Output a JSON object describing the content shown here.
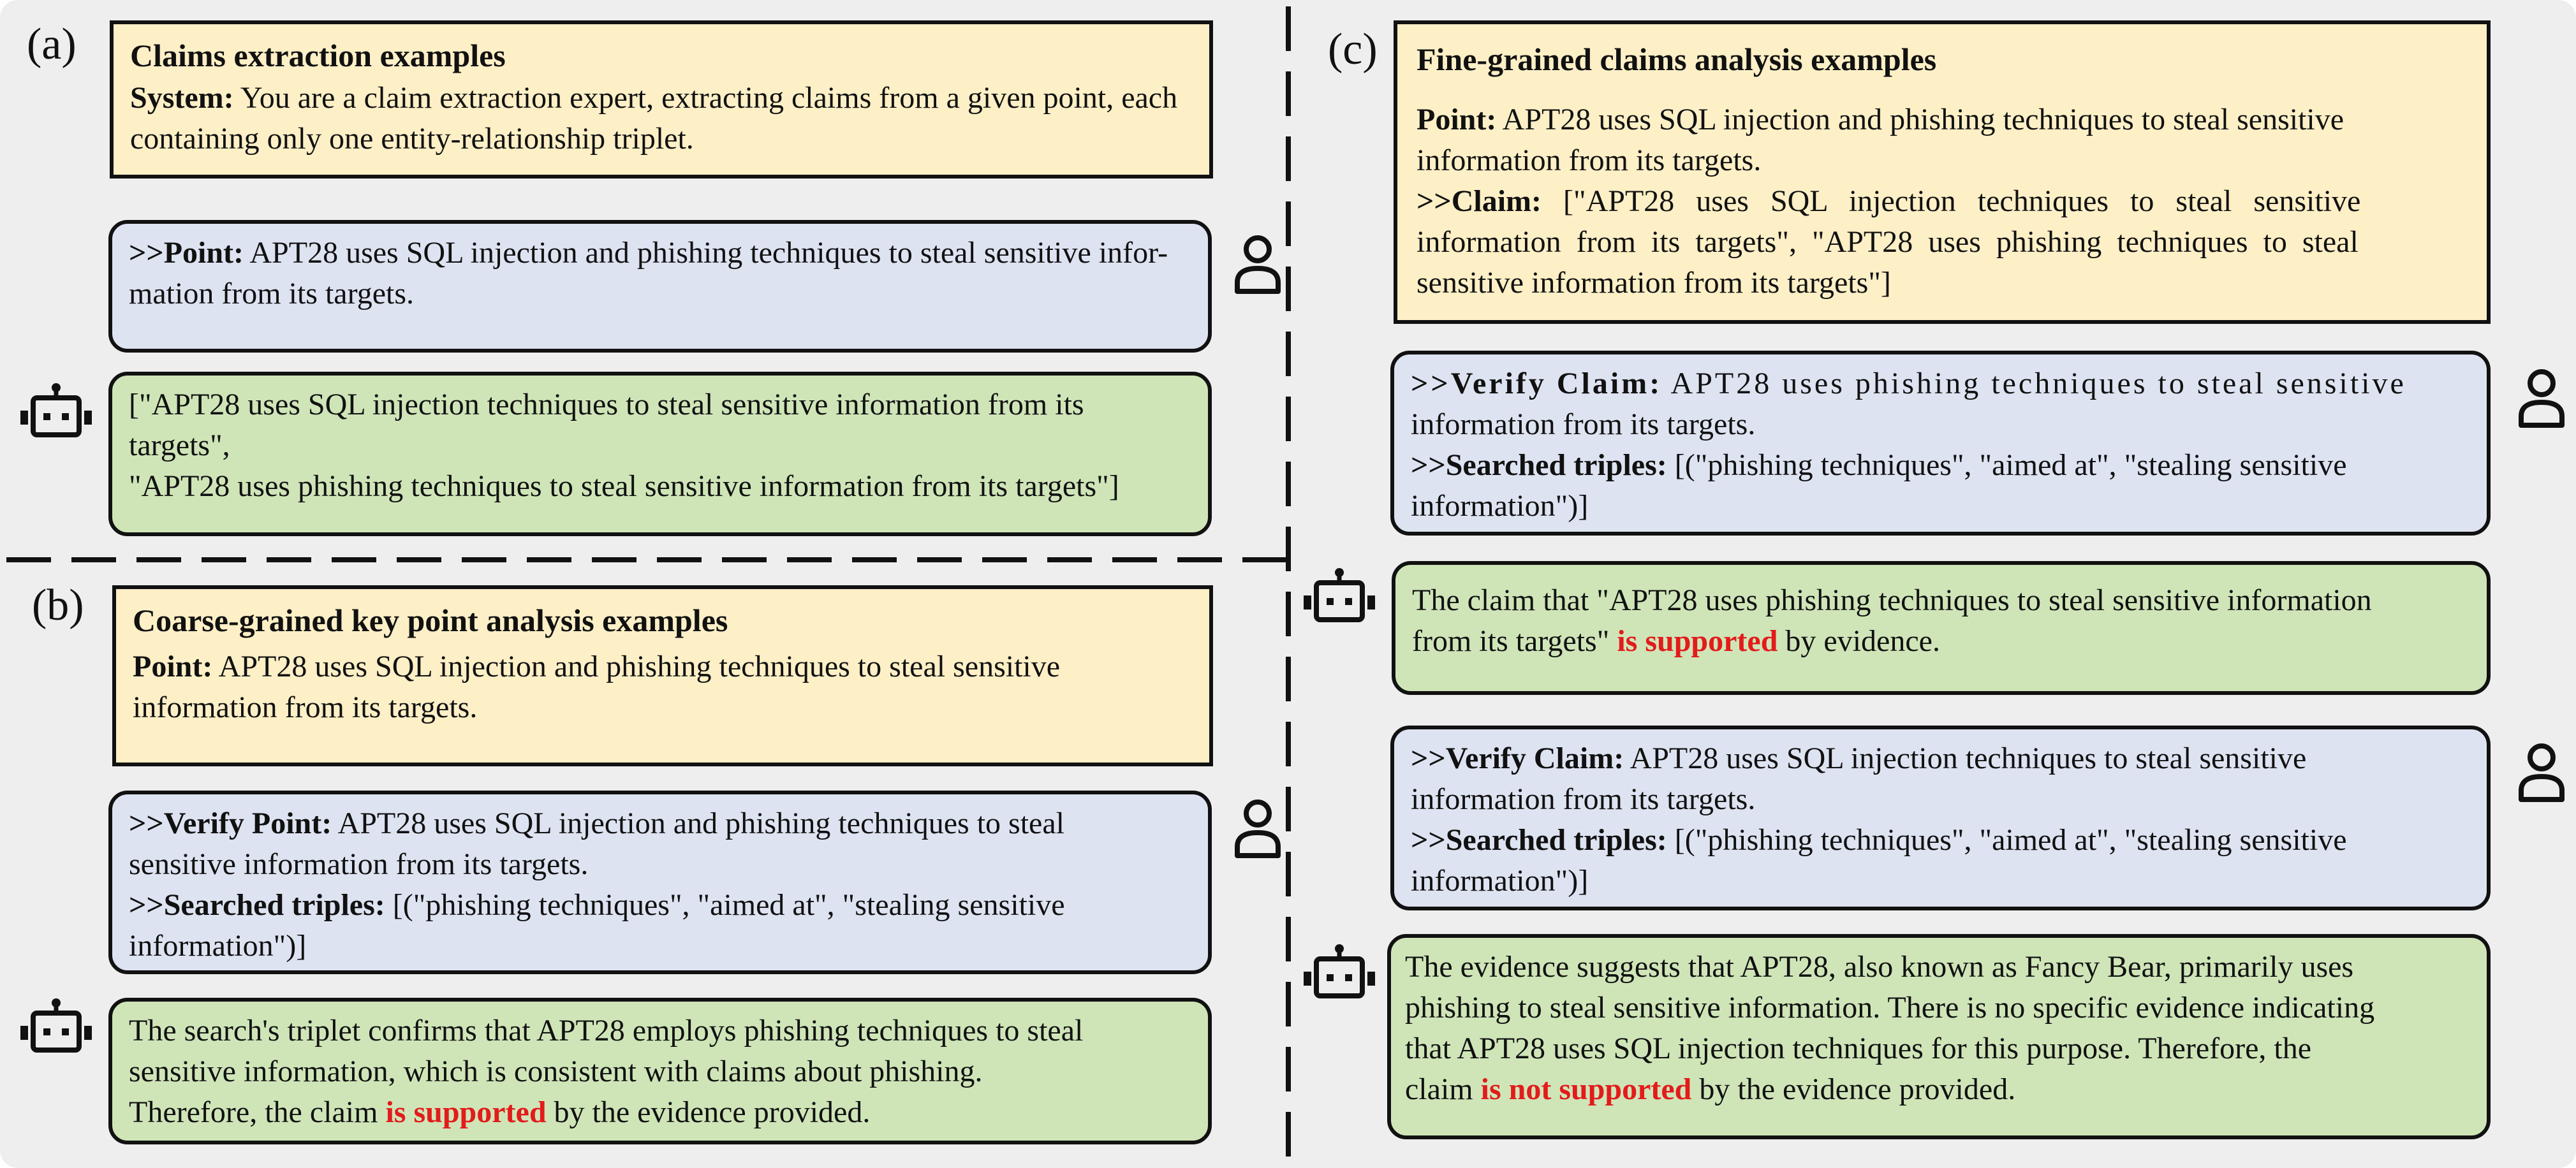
{
  "panel_a": {
    "label": "(a)",
    "title": "Claims extraction examples",
    "system_label": "System:",
    "system_text_1": " You are a claim extraction expert, extracting claims from a given point, each",
    "system_text_2": "containing only one entity-relationship triplet.",
    "point_label": ">>Point:",
    "point_text_1": " APT28 uses SQL injection and phishing techniques to steal sensitive infor-",
    "point_text_2": "mation from its targets.",
    "response_1": "[\"APT28 uses SQL injection techniques to steal sensitive information from its",
    "response_2": "targets\",",
    "response_3": "\"APT28 uses phishing techniques to steal sensitive information from its targets\"]"
  },
  "panel_b": {
    "label": "(b)",
    "title": "Coarse-grained key point analysis examples",
    "point_label": "Point:",
    "point_text_1": " APT28 uses SQL injection and phishing techniques to steal sensitive",
    "point_text_2": "information from its targets.",
    "verify_label": ">>Verify Point:",
    "verify_text_1": " APT28 uses SQL injection and phishing techniques to steal",
    "verify_text_2": "sensitive information from its targets.",
    "triples_label": ">>Searched triples:",
    "triples_text_1": " [(\"phishing techniques\", \"aimed at\", \"stealing sensitive",
    "triples_text_2": "information\")]",
    "response_1": "The search's triplet confirms that APT28 employs phishing techniques to steal",
    "response_2": "sensitive information, which is consistent with claims about phishing.",
    "response_3a": "Therefore, the claim ",
    "response_3b": "is supported",
    "response_3c": " by the evidence provided."
  },
  "panel_c": {
    "label": "(c)",
    "title": "Fine-grained claims analysis examples",
    "point_label": "Point:",
    "point_text_1": " APT28 uses SQL injection and phishing techniques to steal sensitive",
    "point_text_2": "information from its targets.",
    "claim_label": ">>Claim:",
    "claim_text_1": " [\"APT28 uses SQL injection techniques to steal sensitive",
    "claim_text_2": "information from its targets\", \"APT28 uses phishing techniques to steal",
    "claim_text_3": "sensitive information from its targets\"]",
    "verify1_label": ">>Verify Claim:",
    "verify1_text_1": " APT28 uses phishing techniques to steal sensitive",
    "verify1_text_2": "information from its targets.",
    "triples1_label": ">>Searched triples:",
    "triples1_text_1": " [(\"phishing techniques\", \"aimed at\", \"stealing sensitive",
    "triples1_text_2": "information\")]",
    "response1_1": "The claim that \"APT28 uses phishing techniques to steal sensitive information",
    "response1_2a": "from its targets\" ",
    "response1_2b": "is supported",
    "response1_2c": " by evidence.",
    "verify2_label": ">>Verify Claim:",
    "verify2_text_1": " APT28 uses SQL injection techniques to steal sensitive",
    "verify2_text_2": "information from its targets.",
    "triples2_label": ">>Searched triples:",
    "triples2_text_1": " [(\"phishing techniques\", \"aimed at\", \"stealing sensitive",
    "triples2_text_2": "information\")]",
    "response2_1": "The evidence suggests that APT28, also known as Fancy Bear, primarily uses",
    "response2_2": "phishing to steal sensitive information. There is no specific evidence indicating",
    "response2_3": "that APT28 uses SQL injection techniques for this purpose. Therefore, the",
    "response2_4a": "claim ",
    "response2_4b": "is not supported",
    "response2_4c": " by the evidence provided."
  },
  "icons": [
    "user-icon",
    "robot-icon"
  ],
  "colors": {
    "background": "#eeeeee",
    "yellow_box": "#fdefc6",
    "blue_box": "#dde3f1",
    "green_box": "#cfe5b8",
    "emphasis_red": "#e31b1b"
  }
}
